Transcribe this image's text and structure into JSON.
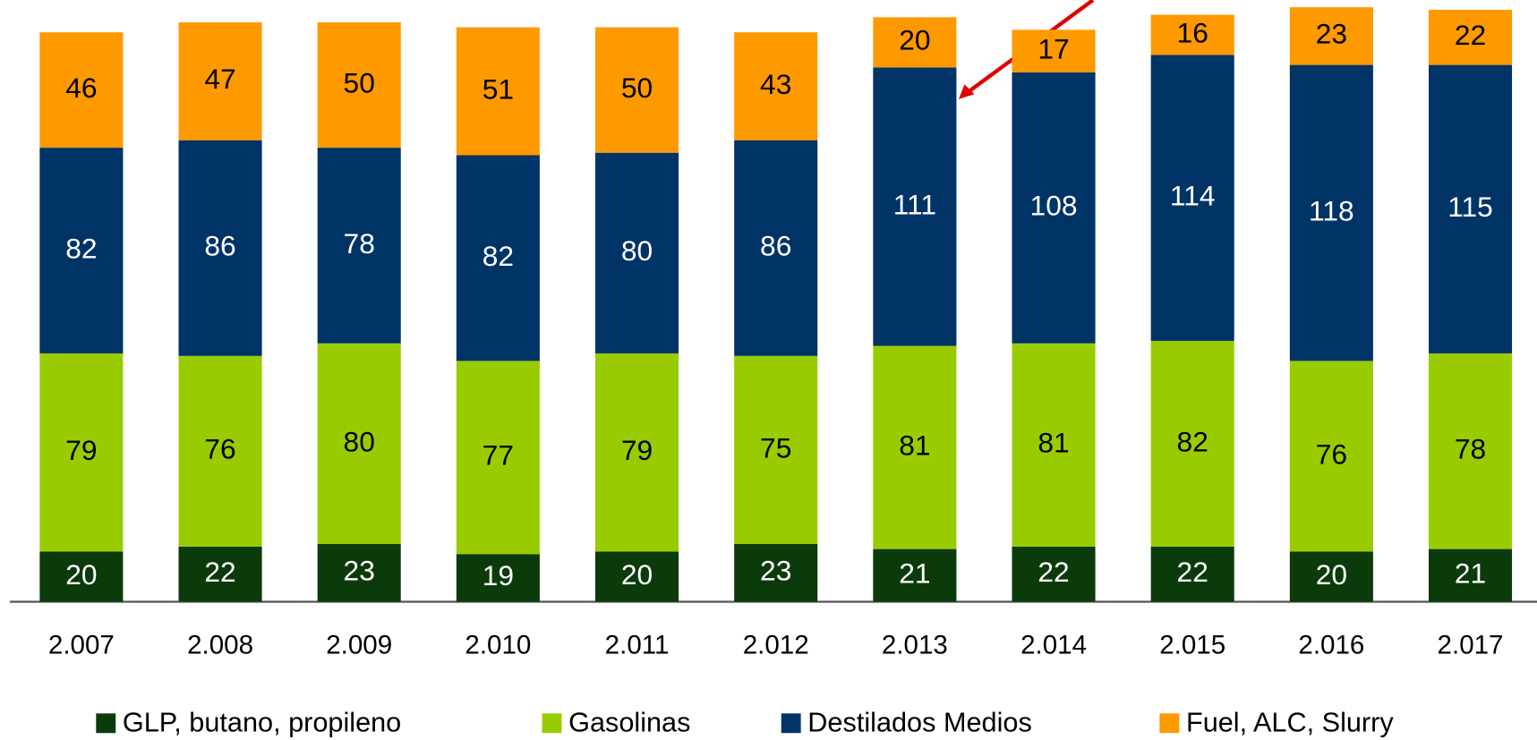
{
  "chart_data": {
    "type": "stacked_bar",
    "categories": [
      "2.007",
      "2.008",
      "2.009",
      "2.010",
      "2.011",
      "2.012",
      "2.013",
      "2.014",
      "2.015",
      "2.016",
      "2.017"
    ],
    "series": [
      {
        "name": "GLP, butano, propileno",
        "color": "#0b3a0b",
        "values": [
          20,
          22,
          23,
          19,
          20,
          23,
          21,
          22,
          22,
          20,
          21
        ]
      },
      {
        "name": "Gasolinas",
        "color": "#99cc00",
        "values": [
          79,
          76,
          80,
          77,
          79,
          75,
          81,
          81,
          82,
          76,
          78
        ]
      },
      {
        "name": "Destilados Medios",
        "color": "#003366",
        "values": [
          82,
          86,
          78,
          82,
          80,
          86,
          111,
          108,
          114,
          118,
          115
        ]
      },
      {
        "name": "Fuel, ALC, Slurry",
        "color": "#ff9900",
        "values": [
          46,
          47,
          50,
          51,
          50,
          43,
          20,
          17,
          16,
          23,
          22
        ]
      }
    ]
  }
}
